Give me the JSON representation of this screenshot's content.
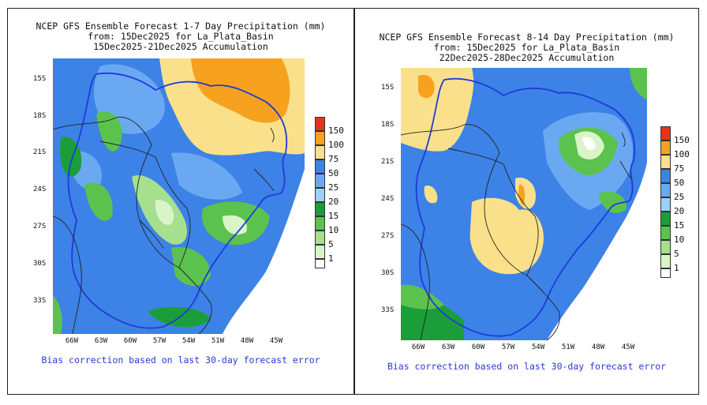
{
  "colors": {
    "c0": "#ffffff",
    "c1": "#d9f5c8",
    "c5": "#a6e08f",
    "c10": "#5cc24e",
    "c15": "#1b9e3a",
    "c20": "#9fd0f6",
    "c25": "#6aa9f2",
    "c50": "#3d82e6",
    "c75": "#fbe08c",
    "c100": "#f7a21f",
    "c150": "#e8311c",
    "border": "#1f3adb"
  },
  "legend": [
    "150",
    "100",
    "75",
    "50",
    "25",
    "20",
    "15",
    "10",
    "5",
    "1"
  ],
  "left": {
    "title_line1": "NCEP GFS Ensemble Forecast 1-7 Day Precipitation (mm)",
    "title_line2": "from: 15Dec2025   for La_Plata_Basin",
    "title_line3": "15Dec2025-21Dec2025 Accumulation",
    "footer": "Bias correction based on last 30-day forecast error",
    "lat_ticks": [
      "15S",
      "18S",
      "21S",
      "24S",
      "27S",
      "30S",
      "33S"
    ],
    "lon_ticks": [
      "66W",
      "63W",
      "60W",
      "57W",
      "54W",
      "51W",
      "48W",
      "45W"
    ]
  },
  "right": {
    "title_line1": "NCEP GFS Ensemble Forecast 8-14 Day Precipitation (mm)",
    "title_line2": "from: 15Dec2025   for La_Plata_Basin",
    "title_line3": "22Dec2025-28Dec2025 Accumulation",
    "footer": "Bias correction based on last 30-day forecast error",
    "lat_ticks": [
      "15S",
      "18S",
      "21S",
      "24S",
      "27S",
      "30S",
      "33S"
    ],
    "lon_ticks": [
      "66W",
      "63W",
      "60W",
      "57W",
      "54W",
      "51W",
      "48W",
      "45W"
    ]
  }
}
